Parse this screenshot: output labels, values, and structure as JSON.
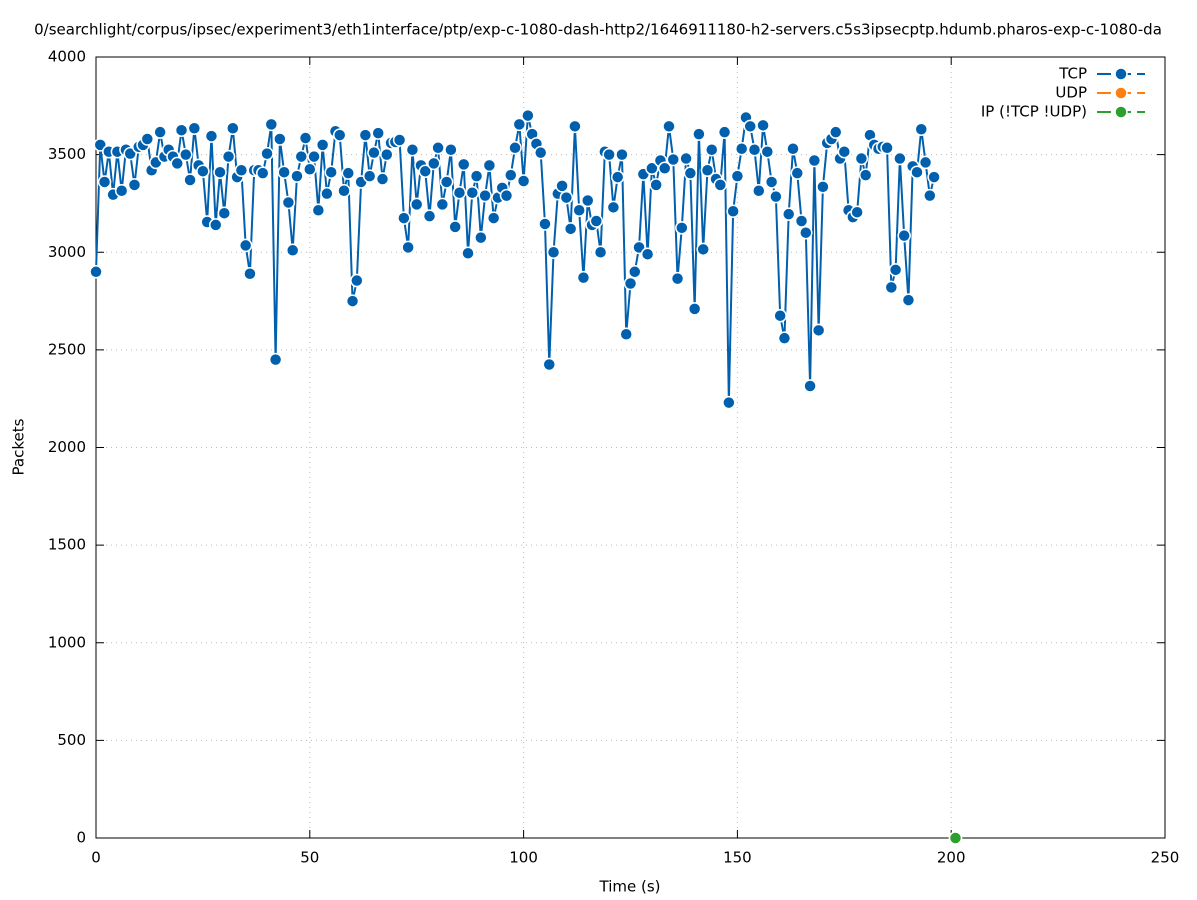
{
  "chart_data": {
    "type": "line",
    "title": "0/searchlight/corpus/ipsec/experiment3/eth1interface/ptp/exp-c-1080-dash-http2/1646911180-h2-servers.c5s3ipsecptp.hdumb.pharos-exp-c-1080-da",
    "x_label": "Time (s)",
    "y_label": "Packets",
    "xlim": [
      0,
      250
    ],
    "xticks": [
      0,
      50,
      100,
      150,
      200,
      250
    ],
    "ylim": [
      0,
      4000
    ],
    "yticks": [
      0,
      500,
      1000,
      1500,
      2000,
      2500,
      3000,
      3500,
      4000
    ],
    "grid": true,
    "legend": "top-right",
    "series": [
      {
        "name": "TCP",
        "color": "#0060ad",
        "x": [
          0,
          1,
          2,
          3,
          4,
          5,
          6,
          7,
          8,
          9,
          10,
          11,
          12,
          13,
          14,
          15,
          16,
          17,
          18,
          19,
          20,
          21,
          22,
          23,
          24,
          25,
          26,
          27,
          28,
          29,
          30,
          31,
          32,
          33,
          34,
          35,
          36,
          37,
          38,
          39,
          40,
          41,
          42,
          43,
          44,
          45,
          46,
          47,
          48,
          49,
          50,
          51,
          52,
          53,
          54,
          55,
          56,
          57,
          58,
          59,
          60,
          61,
          62,
          63,
          64,
          65,
          66,
          67,
          68,
          69,
          70,
          71,
          72,
          73,
          74,
          75,
          76,
          77,
          78,
          79,
          80,
          81,
          82,
          83,
          84,
          85,
          86,
          87,
          88,
          89,
          90,
          91,
          92,
          93,
          94,
          95,
          96,
          97,
          98,
          99,
          100,
          101,
          102,
          103,
          104,
          105,
          106,
          107,
          108,
          109,
          110,
          111,
          112,
          113,
          114,
          115,
          116,
          117,
          118,
          119,
          120,
          121,
          122,
          123,
          124,
          125,
          126,
          127,
          128,
          129,
          130,
          131,
          132,
          133,
          134,
          135,
          136,
          137,
          138,
          139,
          140,
          141,
          142,
          143,
          144,
          145,
          146,
          147,
          148,
          149,
          150,
          151,
          152,
          153,
          154,
          155,
          156,
          157,
          158,
          159,
          160,
          161,
          162,
          163,
          164,
          165,
          166,
          167,
          168,
          169,
          170,
          171,
          172,
          173,
          174,
          175,
          176,
          177,
          178,
          179,
          180,
          181,
          182,
          183,
          184,
          185,
          186,
          187,
          188,
          189,
          190,
          191,
          192,
          193,
          194,
          195,
          196
        ],
        "values": [
          2900,
          3550,
          3360,
          3515,
          3295,
          3515,
          3315,
          3525,
          3505,
          3345,
          3540,
          3550,
          3580,
          3420,
          3460,
          3615,
          3490,
          3525,
          3490,
          3455,
          3625,
          3500,
          3370,
          3635,
          3445,
          3415,
          3155,
          3595,
          3140,
          3410,
          3200,
          3490,
          3635,
          3385,
          3420,
          3035,
          2890,
          3420,
          3420,
          3405,
          3505,
          3655,
          2450,
          3580,
          3410,
          3255,
          3010,
          3390,
          3490,
          3585,
          3425,
          3490,
          3215,
          3550,
          3300,
          3410,
          3620,
          3600,
          3315,
          3405,
          2750,
          2855,
          3360,
          3600,
          3390,
          3510,
          3610,
          3375,
          3500,
          3560,
          3565,
          3575,
          3175,
          3025,
          3525,
          3245,
          3445,
          3415,
          3185,
          3455,
          3535,
          3245,
          3360,
          3525,
          3130,
          3305,
          3450,
          2995,
          3305,
          3390,
          3075,
          3290,
          3445,
          3175,
          3280,
          3330,
          3290,
          3395,
          3535,
          3655,
          3365,
          3700,
          3605,
          3555,
          3510,
          3145,
          2425,
          3000,
          3300,
          3340,
          3280,
          3120,
          3645,
          3215,
          2870,
          3265,
          3140,
          3160,
          3000,
          3515,
          3500,
          3230,
          3385,
          3500,
          2580,
          2840,
          2900,
          3025,
          3400,
          2990,
          3430,
          3345,
          3470,
          3430,
          3645,
          3475,
          2865,
          3125,
          3480,
          3405,
          2710,
          3605,
          3015,
          3420,
          3525,
          3375,
          3345,
          3615,
          2230,
          3210,
          3390,
          3530,
          3690,
          3645,
          3525,
          3315,
          3650,
          3515,
          3360,
          3285,
          2675,
          2560,
          3195,
          3530,
          3405,
          3160,
          3100,
          2315,
          3470,
          2600,
          3335,
          3560,
          3580,
          3615,
          3480,
          3515,
          3215,
          3180,
          3205,
          3480,
          3395,
          3600,
          3550,
          3530,
          3540,
          3535,
          2820,
          2910,
          3480,
          3085,
          2755,
          3440,
          3410,
          3630,
          3460,
          3290,
          3385
        ]
      },
      {
        "name": "UDP",
        "color": "#ff7f0e",
        "x": [
          201
        ],
        "values": [
          0
        ]
      },
      {
        "name": "IP (!TCP  !UDP)",
        "color": "#2ca02c",
        "x": [
          201
        ],
        "values": [
          0
        ]
      }
    ]
  }
}
